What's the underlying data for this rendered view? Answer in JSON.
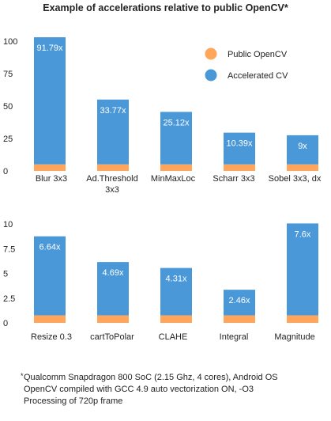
{
  "title": "Example of accelerations relative to public OpenCV*",
  "colors": {
    "public": "#ffa65a",
    "accelerated": "#4a98d8",
    "label": "#ffffff",
    "text": "#222222"
  },
  "legend": [
    {
      "name": "Public OpenCV",
      "color": "#ffa65a"
    },
    {
      "name": "Accelerated CV",
      "color": "#4a98d8"
    }
  ],
  "chart_data": [
    {
      "type": "bar",
      "stacked": true,
      "categories": [
        "Blur 3x3",
        "Ad.Threshold 3x3",
        "MinMaxLoc",
        "Scharr 3x3",
        "Sobel 3x3, dx"
      ],
      "series": [
        {
          "name": "Public OpenCV",
          "values": [
            5,
            5,
            5,
            5,
            5
          ]
        },
        {
          "name": "Accelerated CV",
          "values": [
            98,
            50,
            40.5,
            24.5,
            22.5
          ]
        }
      ],
      "data_labels": [
        "91.79x",
        "33.77x",
        "25.12x",
        "10.39x",
        "9x"
      ],
      "yticks": [
        "100",
        "75",
        "50",
        "25",
        "0"
      ],
      "ylim": [
        0,
        100
      ],
      "legend_position": "top-right"
    },
    {
      "type": "bar",
      "stacked": true,
      "categories": [
        "Resize 0.3",
        "cartToPolar",
        "CLAHE",
        "Integral",
        "Magnitude"
      ],
      "series": [
        {
          "name": "Public OpenCV",
          "values": [
            0.75,
            0.75,
            0.75,
            0.75,
            0.75
          ]
        },
        {
          "name": "Accelerated CV",
          "values": [
            8,
            5.4,
            4.8,
            2.6,
            9.3
          ]
        }
      ],
      "data_labels": [
        "6.64x",
        "4.69x",
        "4.31x",
        "2.46x",
        "7.6x"
      ],
      "yticks": [
        "10",
        "7.5",
        "5",
        "2.5",
        "0"
      ],
      "ylim": [
        0,
        10
      ]
    }
  ],
  "footnote": {
    "mark": "*",
    "lines": [
      "Qualcomm Snapdragon 800 SoC (2.15 Ghz, 4 cores), Android OS",
      "OpenCV compiled with GCC 4.9 auto vectorization ON, -O3",
      "Processing of 720p frame"
    ]
  }
}
